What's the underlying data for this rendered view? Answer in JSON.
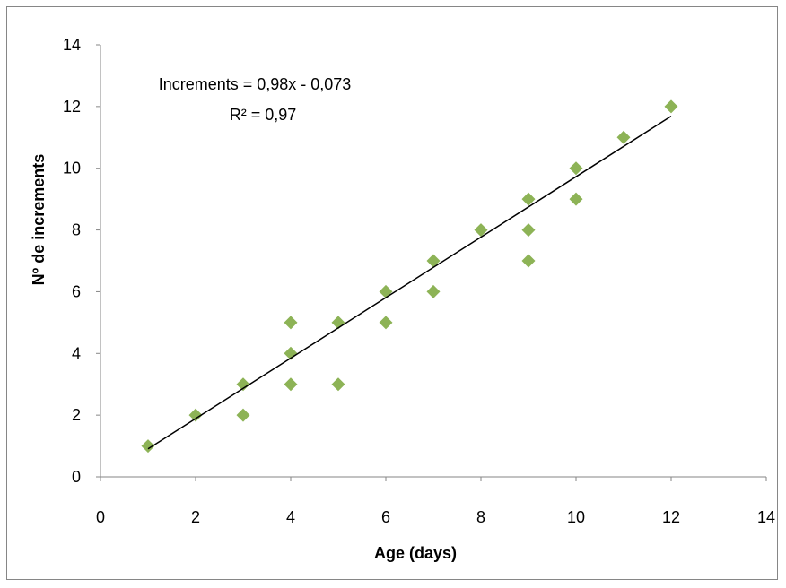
{
  "chart_data": {
    "type": "scatter",
    "title": "",
    "xlabel": "Age (days)",
    "ylabel": "Nº de increments",
    "xlim": [
      0,
      14
    ],
    "ylim": [
      0,
      14
    ],
    "xticks": [
      "0",
      "2",
      "4",
      "6",
      "8",
      "10",
      "12",
      "14"
    ],
    "yticks": [
      "0",
      "2",
      "4",
      "6",
      "8",
      "10",
      "12",
      "14"
    ],
    "grid": false,
    "marker": "diamond",
    "marker_color": "#8DB356",
    "points": [
      [
        1,
        1
      ],
      [
        2,
        2
      ],
      [
        3,
        3
      ],
      [
        3,
        2
      ],
      [
        4,
        5
      ],
      [
        4,
        4
      ],
      [
        4,
        3
      ],
      [
        5,
        5
      ],
      [
        5,
        3
      ],
      [
        6,
        6
      ],
      [
        6,
        5
      ],
      [
        7,
        7
      ],
      [
        7,
        6
      ],
      [
        8,
        8
      ],
      [
        9,
        9
      ],
      [
        9,
        8
      ],
      [
        9,
        7
      ],
      [
        10,
        10
      ],
      [
        10,
        9
      ],
      [
        11,
        11
      ],
      [
        12,
        12
      ]
    ],
    "trendline": {
      "slope": 0.98,
      "intercept": -0.073,
      "x_range": [
        1,
        12
      ],
      "color": "#000000"
    },
    "annotations": {
      "equation": "Increments = 0,98x - 0,073",
      "r_squared": "R² = 0,97"
    }
  }
}
